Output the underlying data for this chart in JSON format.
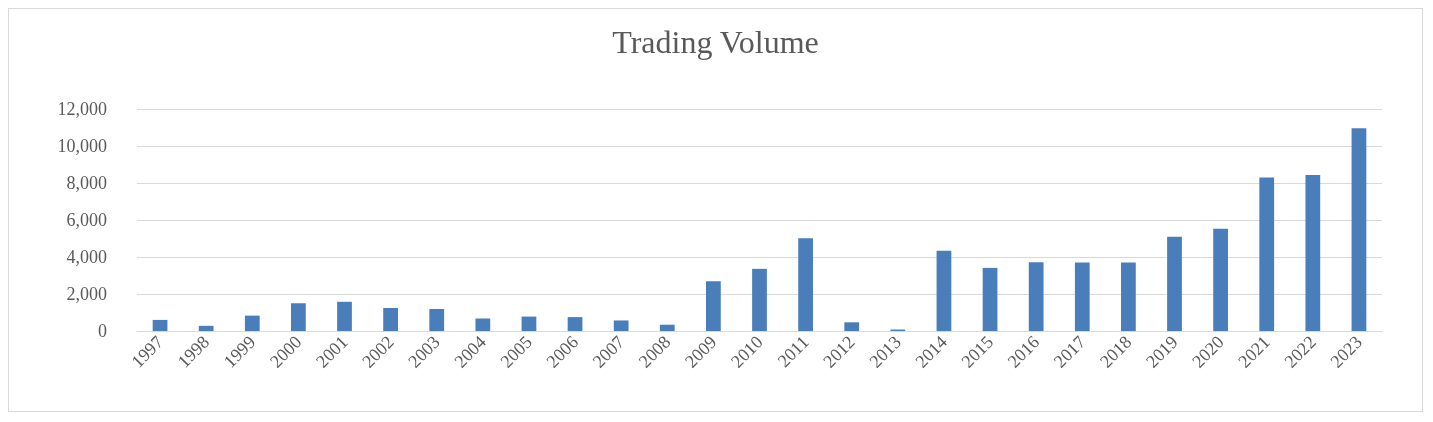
{
  "chart_data": {
    "type": "bar",
    "title": "Trading Volume",
    "categories": [
      "1997",
      "1998",
      "1999",
      "2000",
      "2001",
      "2002",
      "2003",
      "2004",
      "2005",
      "2006",
      "2007",
      "2008",
      "2009",
      "2010",
      "2011",
      "2012",
      "2013",
      "2014",
      "2015",
      "2016",
      "2017",
      "2018",
      "2019",
      "2020",
      "2021",
      "2022",
      "2023"
    ],
    "values": [
      600,
      280,
      830,
      1500,
      1580,
      1240,
      1190,
      670,
      780,
      750,
      570,
      340,
      2690,
      3360,
      5020,
      470,
      80,
      4340,
      3410,
      3720,
      3700,
      3700,
      5090,
      5530,
      8300,
      8430,
      10960
    ],
    "color": "#4a7ebb",
    "ylim": [
      0,
      12000
    ],
    "yticks": [
      0,
      {
        "value": 2000,
        "label": "2,000"
      },
      {
        "value": 4000,
        "label": "4,000"
      },
      {
        "value": 6000,
        "label": "6,000"
      },
      {
        "value": 8000,
        "label": "8,000"
      },
      {
        "value": 10000,
        "label": "10,000"
      },
      {
        "value": 12000,
        "label": "12,000"
      }
    ],
    "grid": "y"
  }
}
